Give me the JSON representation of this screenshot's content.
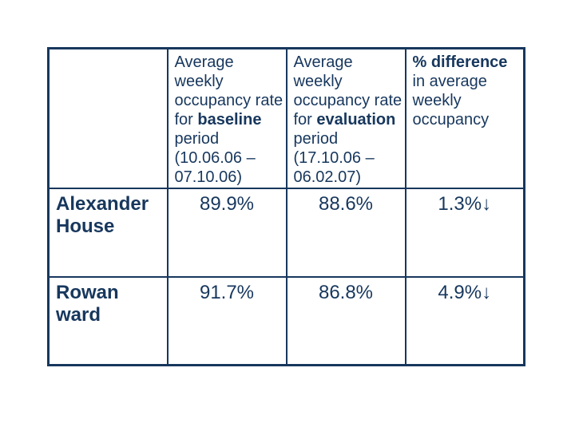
{
  "slide": {
    "background": "#ffffff",
    "text_color": "#17375d",
    "border_color": "#17375d"
  },
  "table": {
    "header_row": [
      {
        "name": "header-cell-empty",
        "lines": []
      },
      {
        "name": "header-cell-baseline",
        "lines": [
          "Average",
          "weekly",
          "occupancy rate",
          "for **baseline**",
          "period",
          "(10.06.06 –",
          "07.10.06)"
        ]
      },
      {
        "name": "header-cell-evaluation",
        "lines": [
          "Average",
          "weekly",
          "occupancy rate",
          "for **evaluation**",
          "period",
          "(17.10.06 –",
          "06.02.07)"
        ]
      },
      {
        "name": "header-cell-difference",
        "lines": [
          "**% difference**",
          "in average",
          "weekly",
          "occupancy"
        ]
      }
    ],
    "data_rows": [
      {
        "label_lines": [
          "Alexander",
          "House"
        ],
        "values": [
          "89.9%",
          "88.6%",
          "1.3%↓"
        ]
      },
      {
        "label_lines": [
          "Rowan",
          "ward"
        ],
        "values": [
          "91.7%",
          "86.8%",
          "4.9%↓"
        ]
      }
    ]
  },
  "chart_data": {
    "type": "table",
    "columns": [
      "",
      "Average weekly occupancy rate for baseline period (10.06.06 – 07.10.06)",
      "Average weekly occupancy rate for evaluation period (17.10.06 – 06.02.07)",
      "% difference in average weekly occupancy"
    ],
    "rows": [
      [
        "Alexander House",
        "89.9%",
        "88.6%",
        "1.3%↓"
      ],
      [
        "Rowan ward",
        "91.7%",
        "86.8%",
        "4.9%↓"
      ]
    ]
  }
}
